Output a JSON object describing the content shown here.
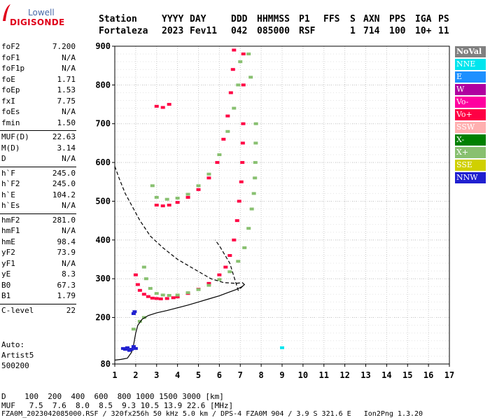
{
  "logo": {
    "line1": "Lowell",
    "line2": "DIGISONDE"
  },
  "header": {
    "labels": [
      "Station",
      "YYYY",
      "DAY",
      "DDD",
      "HHMMSS",
      "P1",
      "FFS",
      "S",
      "AXN",
      "PPS",
      "IGA",
      "PS"
    ],
    "values": [
      "Fortaleza",
      "2023",
      "Fev11",
      "042",
      "085000",
      "RSF",
      "",
      "1",
      "714",
      "100",
      "10+",
      "11"
    ]
  },
  "params": {
    "group1": [
      {
        "k": "foF2",
        "v": "7.200"
      },
      {
        "k": "foF1",
        "v": "N/A"
      },
      {
        "k": "foF1p",
        "v": "N/A"
      },
      {
        "k": "foE",
        "v": "1.71"
      },
      {
        "k": "foEp",
        "v": "1.53"
      },
      {
        "k": "fxI",
        "v": "7.75"
      },
      {
        "k": "foEs",
        "v": "N/A"
      },
      {
        "k": "fmin",
        "v": "1.50"
      }
    ],
    "group2": [
      {
        "k": "MUF(D)",
        "v": "22.63"
      },
      {
        "k": "M(D)",
        "v": "3.14"
      },
      {
        "k": "D",
        "v": "N/A"
      }
    ],
    "group3": [
      {
        "k": "h`F",
        "v": "245.0"
      },
      {
        "k": "h`F2",
        "v": "245.0"
      },
      {
        "k": "h`E",
        "v": "104.2"
      },
      {
        "k": "h`Es",
        "v": "N/A"
      }
    ],
    "group4": [
      {
        "k": "hmF2",
        "v": "281.0"
      },
      {
        "k": "hmF1",
        "v": "N/A"
      },
      {
        "k": "hmE",
        "v": "98.4"
      },
      {
        "k": "yF2",
        "v": "73.9"
      },
      {
        "k": "yF1",
        "v": "N/A"
      },
      {
        "k": "yE",
        "v": "8.3"
      },
      {
        "k": "B0",
        "v": "67.3"
      },
      {
        "k": "B1",
        "v": "1.79"
      }
    ],
    "group5": [
      {
        "k": "C-level",
        "v": "22"
      }
    ]
  },
  "auto": {
    "line1": "Auto:",
    "line2": "Artist5",
    "line3": "500200"
  },
  "legend": [
    {
      "label": "NoVal",
      "color": "#808080"
    },
    {
      "label": "NNE",
      "color": "#00e5ee"
    },
    {
      "label": "E",
      "color": "#1e90ff"
    },
    {
      "label": "W",
      "color": "#b000a0"
    },
    {
      "label": "Vo-",
      "color": "#ff00a0"
    },
    {
      "label": "Vo+",
      "color": "#ff0044"
    },
    {
      "label": "SSW",
      "color": "#ffb0b0"
    },
    {
      "label": "X-",
      "color": "#008000"
    },
    {
      "label": "X+",
      "color": "#88c070"
    },
    {
      "label": "SSE",
      "color": "#d0d000"
    },
    {
      "label": "NNW",
      "color": "#2020d0"
    }
  ],
  "footer": {
    "d_row": "D    100  200  400  600  800 1000 1500 3000 [km]",
    "muf_row": "MUF   7.5  7.6  8.0  8.5  9.3 10.5 13.9 22.6 [MHz]",
    "file_row": "FZA0M_2023042085000.RSF / 320fx256h 50 kHz 5.0 km / DPS-4 FZA0M 904 / 3.9 S 321.6 E   Ion2Png 1.3.20"
  },
  "chart_data": {
    "type": "scatter",
    "xlim": [
      1,
      17
    ],
    "ylim": [
      80,
      900
    ],
    "x_ticks": [
      "1",
      "2",
      "3",
      "4",
      "5",
      "6",
      "7",
      "8",
      "9",
      "10",
      "11",
      "12",
      "13",
      "14",
      "15",
      "16",
      "17"
    ],
    "y_ticks": [
      "80",
      "200",
      "300",
      "400",
      "500",
      "600",
      "700",
      "800",
      "900"
    ],
    "grid": true,
    "series": [
      {
        "name": "O-trace",
        "color": "#ff0044",
        "points": [
          [
            2.0,
            310
          ],
          [
            2.1,
            285
          ],
          [
            2.2,
            270
          ],
          [
            2.4,
            260
          ],
          [
            2.6,
            254
          ],
          [
            2.8,
            250
          ],
          [
            3.0,
            249
          ],
          [
            3.2,
            248
          ],
          [
            3.5,
            249
          ],
          [
            3.8,
            251
          ],
          [
            4.0,
            253
          ],
          [
            4.5,
            262
          ],
          [
            5.0,
            273
          ],
          [
            5.5,
            288
          ],
          [
            6.0,
            310
          ],
          [
            6.3,
            330
          ],
          [
            6.5,
            360
          ],
          [
            6.7,
            400
          ],
          [
            6.85,
            450
          ],
          [
            6.95,
            500
          ],
          [
            7.05,
            550
          ],
          [
            7.1,
            600
          ],
          [
            7.12,
            650
          ],
          [
            7.14,
            700
          ],
          [
            7.15,
            800
          ],
          [
            7.15,
            880
          ],
          [
            3.0,
            490
          ],
          [
            3.3,
            488
          ],
          [
            3.6,
            490
          ],
          [
            4.0,
            497
          ],
          [
            4.5,
            510
          ],
          [
            5.0,
            530
          ],
          [
            5.5,
            560
          ],
          [
            5.9,
            600
          ],
          [
            6.2,
            660
          ],
          [
            6.4,
            720
          ],
          [
            6.55,
            780
          ],
          [
            6.65,
            840
          ],
          [
            6.7,
            890
          ],
          [
            3.0,
            745
          ],
          [
            3.3,
            742
          ],
          [
            3.6,
            750
          ]
        ]
      },
      {
        "name": "X-trace",
        "color": "#88c070",
        "points": [
          [
            2.4,
            330
          ],
          [
            2.5,
            300
          ],
          [
            2.7,
            275
          ],
          [
            3.0,
            262
          ],
          [
            3.3,
            258
          ],
          [
            3.6,
            257
          ],
          [
            4.0,
            258
          ],
          [
            4.5,
            264
          ],
          [
            5.0,
            272
          ],
          [
            5.5,
            283
          ],
          [
            6.0,
            298
          ],
          [
            6.5,
            318
          ],
          [
            6.9,
            345
          ],
          [
            7.2,
            380
          ],
          [
            7.4,
            430
          ],
          [
            7.55,
            480
          ],
          [
            7.65,
            520
          ],
          [
            7.7,
            560
          ],
          [
            7.72,
            600
          ],
          [
            7.74,
            650
          ],
          [
            7.75,
            700
          ],
          [
            7.5,
            820
          ],
          [
            7.4,
            880
          ],
          [
            2.8,
            540
          ],
          [
            3.0,
            510
          ],
          [
            3.5,
            505
          ],
          [
            4.0,
            508
          ],
          [
            4.5,
            518
          ],
          [
            5.0,
            540
          ],
          [
            5.5,
            570
          ],
          [
            6.0,
            620
          ],
          [
            6.4,
            680
          ],
          [
            6.7,
            740
          ],
          [
            6.9,
            800
          ],
          [
            7.0,
            860
          ],
          [
            1.9,
            170
          ],
          [
            2.2,
            190
          ],
          [
            2.4,
            200
          ]
        ]
      },
      {
        "name": "profile-dashed",
        "color": "#000000",
        "points": [
          [
            1.0,
            590
          ],
          [
            1.2,
            560
          ],
          [
            1.5,
            520
          ],
          [
            1.8,
            490
          ],
          [
            2.2,
            450
          ],
          [
            2.7,
            410
          ],
          [
            3.3,
            380
          ],
          [
            4.0,
            350
          ],
          [
            4.8,
            325
          ],
          [
            5.6,
            300
          ],
          [
            6.2,
            290
          ],
          [
            6.8,
            288
          ],
          [
            7.1,
            290
          ],
          [
            7.2,
            285
          ],
          [
            6.9,
            270
          ],
          [
            6.5,
            340
          ],
          [
            6.0,
            385
          ],
          [
            5.8,
            400
          ]
        ]
      },
      {
        "name": "profile-solid",
        "color": "#000000",
        "points": [
          [
            1.0,
            90
          ],
          [
            1.3,
            92
          ],
          [
            1.6,
            95
          ],
          [
            1.8,
            110
          ],
          [
            1.9,
            130
          ],
          [
            2.0,
            160
          ],
          [
            2.1,
            180
          ],
          [
            2.3,
            195
          ],
          [
            2.6,
            205
          ],
          [
            3.0,
            212
          ],
          [
            3.5,
            218
          ],
          [
            4.0,
            225
          ],
          [
            4.5,
            232
          ],
          [
            5.0,
            240
          ],
          [
            5.5,
            248
          ],
          [
            6.0,
            256
          ],
          [
            6.4,
            264
          ],
          [
            6.8,
            272
          ],
          [
            7.1,
            280
          ],
          [
            7.2,
            285
          ]
        ]
      },
      {
        "name": "E-echoes",
        "color": "#2020d0",
        "points": [
          [
            1.4,
            120
          ],
          [
            1.5,
            118
          ],
          [
            1.6,
            122
          ],
          [
            1.7,
            115
          ],
          [
            1.8,
            118
          ],
          [
            1.9,
            125
          ],
          [
            2.0,
            120
          ],
          [
            1.9,
            210
          ],
          [
            1.95,
            215
          ]
        ]
      },
      {
        "name": "NNE-point",
        "color": "#00e5ee",
        "points": [
          [
            9.0,
            122
          ]
        ]
      }
    ]
  }
}
